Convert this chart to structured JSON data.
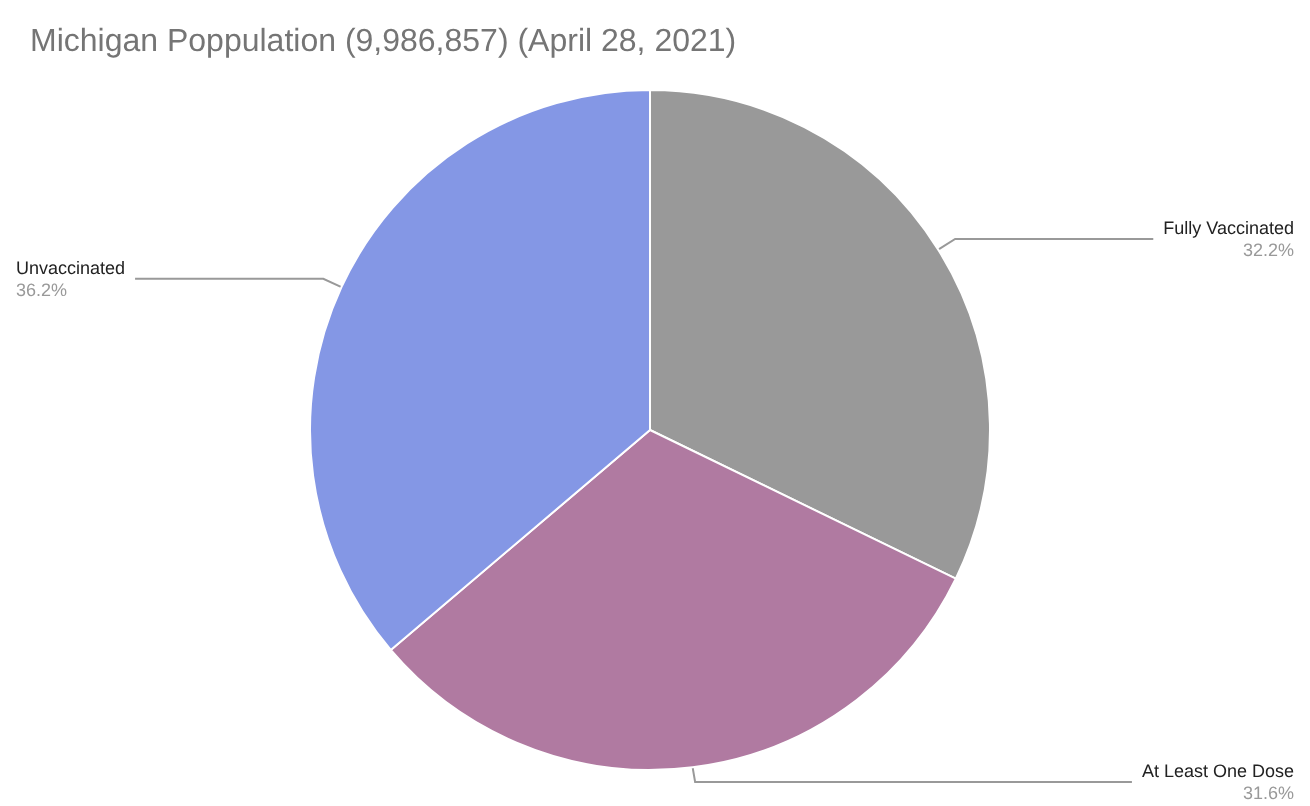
{
  "chart_data": {
    "type": "pie",
    "title": "Michigan Poppulation (9,986,857) (April 28, 2021)",
    "categories": [
      "Fully Vaccinated",
      "At Least One Dose",
      "Unvaccinated"
    ],
    "values": [
      32.2,
      31.6,
      36.2
    ],
    "value_labels": [
      "32.2%",
      "31.6%",
      "36.2%"
    ],
    "colors": [
      "#999999",
      "#b07aa1",
      "#8497e5"
    ],
    "legend": false
  }
}
